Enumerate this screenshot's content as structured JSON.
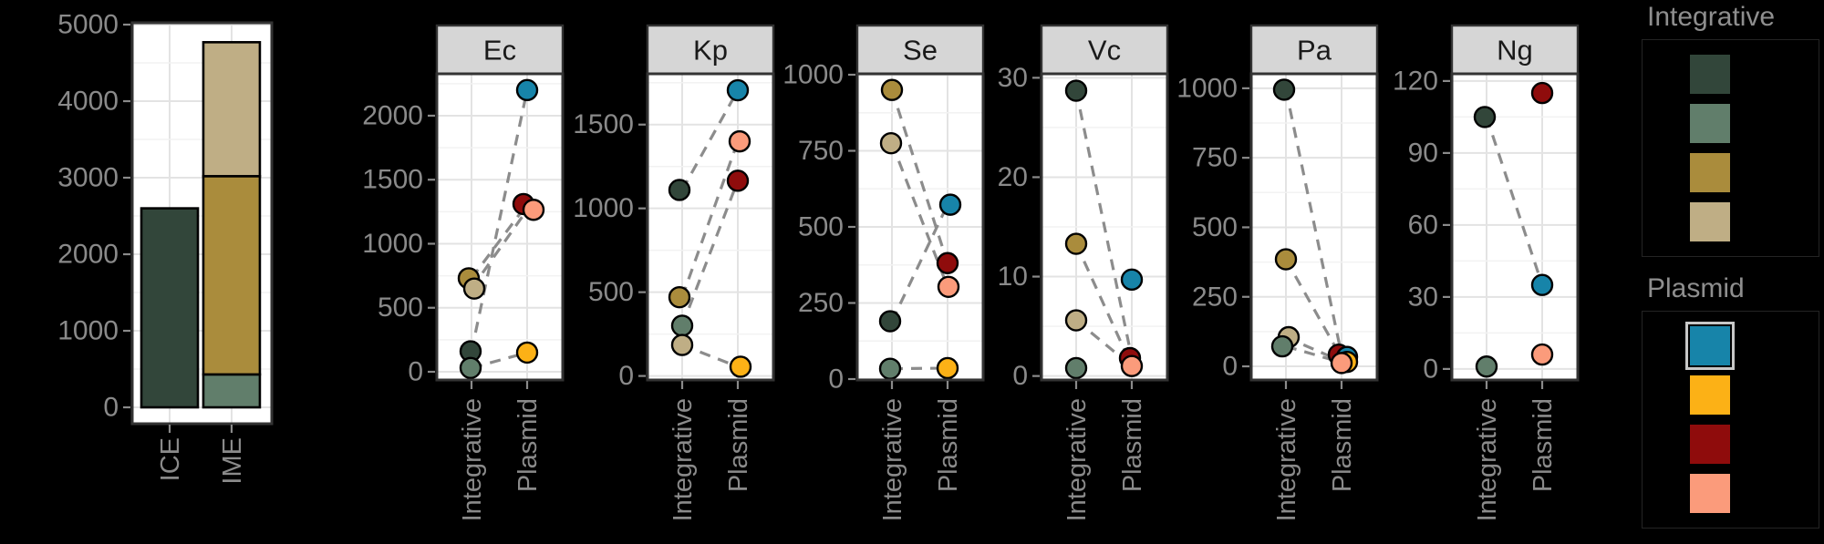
{
  "background": "#000000",
  "palette": {
    "dark_green": "#32463A",
    "sage": "#617E6B",
    "gold": "#AA8C3C",
    "tan": "#BFAE85",
    "blue": "#1784A9",
    "orange": "#FCB116",
    "red": "#8F0C0C",
    "salmon": "#FB9B7B"
  },
  "theme": {
    "panel_bg": "#FFFFFF",
    "panel_border": "#333333",
    "header_bg": "#D6D6D6",
    "header_text": "#1A1A1A",
    "grid_major": "#E3E3E3",
    "grid_minor": "#F2F2F2",
    "axis_text": "#8A8A8A",
    "dash_line": "#8C8C8C",
    "point_stroke": "#000000",
    "legend_title": "#8E8E8E",
    "legend_box_border": "#242424",
    "highlight_border": "#C8C8C8"
  },
  "chart_data": {
    "type": [
      "bar",
      "scatter"
    ],
    "x_categories": [
      "Integrative",
      "Plasmid"
    ],
    "bar_chart": {
      "type": "stacked-bar",
      "categories": [
        "ICE",
        "IME"
      ],
      "y_ticks": [
        0,
        1000,
        2000,
        3000,
        4000,
        5000
      ],
      "minor_step": 500,
      "domain": [
        -214,
        5024
      ],
      "bars": [
        {
          "category": "ICE",
          "segments": [
            {
              "color": "dark_green",
              "from": 0,
              "to": 2600
            }
          ]
        },
        {
          "category": "IME",
          "segments": [
            {
              "color": "sage",
              "from": 0,
              "to": 430
            },
            {
              "color": "gold",
              "from": 430,
              "to": 3020
            },
            {
              "color": "tan",
              "from": 3020,
              "to": 4770
            }
          ]
        }
      ]
    },
    "facets": [
      {
        "label": "Ec",
        "y_ticks": [
          0,
          500,
          1000,
          1500,
          2000
        ],
        "tick_step": 500,
        "domain": [
          -64,
          2327
        ],
        "points": [
          {
            "cat": "Integrative",
            "color": "gold",
            "value": 730,
            "dx": -3
          },
          {
            "cat": "Integrative",
            "color": "tan",
            "value": 650,
            "dx": 3
          },
          {
            "cat": "Integrative",
            "color": "dark_green",
            "value": 160,
            "dx": -1
          },
          {
            "cat": "Integrative",
            "color": "sage",
            "value": 30,
            "dx": -1
          },
          {
            "cat": "Plasmid",
            "color": "blue",
            "value": 2200,
            "dx": 0
          },
          {
            "cat": "Plasmid",
            "color": "red",
            "value": 1310,
            "dx": -4
          },
          {
            "cat": "Plasmid",
            "color": "salmon",
            "value": 1265,
            "dx": 7
          },
          {
            "cat": "Plasmid",
            "color": "orange",
            "value": 150,
            "dx": 0
          }
        ],
        "lines": [
          {
            "from_value": 160,
            "to_value": 2200
          },
          {
            "from_value": 730,
            "to_value": 1310
          },
          {
            "from_value": 650,
            "to_value": 1265
          },
          {
            "from_value": 30,
            "to_value": 150
          }
        ]
      },
      {
        "label": "Kp",
        "y_ticks": [
          0,
          500,
          1000,
          1500
        ],
        "tick_step": 500,
        "domain": [
          -24,
          1803
        ],
        "points": [
          {
            "cat": "Integrative",
            "color": "dark_green",
            "value": 1110,
            "dx": -3
          },
          {
            "cat": "Integrative",
            "color": "gold",
            "value": 470,
            "dx": -3
          },
          {
            "cat": "Integrative",
            "color": "sage",
            "value": 300,
            "dx": 0
          },
          {
            "cat": "Integrative",
            "color": "tan",
            "value": 185,
            "dx": 0
          },
          {
            "cat": "Plasmid",
            "color": "blue",
            "value": 1705,
            "dx": 0
          },
          {
            "cat": "Plasmid",
            "color": "salmon",
            "value": 1400,
            "dx": 2
          },
          {
            "cat": "Plasmid",
            "color": "red",
            "value": 1165,
            "dx": 0
          },
          {
            "cat": "Plasmid",
            "color": "orange",
            "value": 55,
            "dx": 3
          }
        ],
        "lines": [
          {
            "from_value": 1110,
            "to_value": 1705
          },
          {
            "from_value": 470,
            "to_value": 1400
          },
          {
            "from_value": 300,
            "to_value": 1165
          },
          {
            "from_value": 185,
            "to_value": 55
          }
        ]
      },
      {
        "label": "Se",
        "y_ticks": [
          0,
          250,
          500,
          750,
          1000
        ],
        "tick_step": 250,
        "domain": [
          -3,
          1003
        ],
        "points": [
          {
            "cat": "Integrative",
            "color": "gold",
            "value": 950,
            "dx": 0
          },
          {
            "cat": "Integrative",
            "color": "tan",
            "value": 775,
            "dx": -1
          },
          {
            "cat": "Integrative",
            "color": "dark_green",
            "value": 190,
            "dx": -2
          },
          {
            "cat": "Integrative",
            "color": "sage",
            "value": 34,
            "dx": -2
          },
          {
            "cat": "Plasmid",
            "color": "blue",
            "value": 573,
            "dx": 3
          },
          {
            "cat": "Plasmid",
            "color": "red",
            "value": 381,
            "dx": 0
          },
          {
            "cat": "Plasmid",
            "color": "salmon",
            "value": 303,
            "dx": 1
          },
          {
            "cat": "Plasmid",
            "color": "orange",
            "value": 36,
            "dx": 0
          }
        ],
        "lines": [
          {
            "from_value": 190,
            "to_value": 573
          },
          {
            "from_value": 950,
            "to_value": 381
          },
          {
            "from_value": 775,
            "to_value": 303
          },
          {
            "from_value": 34,
            "to_value": 36
          }
        ]
      },
      {
        "label": "Vc",
        "y_ticks": [
          0,
          10,
          20,
          30
        ],
        "tick_step": 10,
        "domain": [
          -0.4,
          30.4
        ],
        "points": [
          {
            "cat": "Integrative",
            "color": "dark_green",
            "value": 28.7,
            "dx": 0
          },
          {
            "cat": "Integrative",
            "color": "gold",
            "value": 13.3,
            "dx": 0
          },
          {
            "cat": "Integrative",
            "color": "tan",
            "value": 5.6,
            "dx": 0
          },
          {
            "cat": "Integrative",
            "color": "sage",
            "value": 0.8,
            "dx": 0
          },
          {
            "cat": "Plasmid",
            "color": "red",
            "value": 1.8,
            "dx": -2
          },
          {
            "cat": "Plasmid",
            "color": "blue",
            "value": 9.7,
            "dx": 0
          },
          {
            "cat": "Plasmid",
            "color": "salmon",
            "value": 1.0,
            "dx": 0
          }
        ],
        "lines": [
          {
            "from_value": 28.7,
            "to_value": 1.8
          },
          {
            "from_value": 13.3,
            "to_value": 1.0
          },
          {
            "from_value": 5.6,
            "to_value": 1.0
          }
        ]
      },
      {
        "label": "Pa",
        "y_ticks": [
          0,
          250,
          500,
          750,
          1000
        ],
        "tick_step": 250,
        "domain": [
          -49,
          1052
        ],
        "points": [
          {
            "cat": "Integrative",
            "color": "dark_green",
            "value": 995,
            "dx": -2
          },
          {
            "cat": "Integrative",
            "color": "gold",
            "value": 385,
            "dx": 0
          },
          {
            "cat": "Integrative",
            "color": "tan",
            "value": 105,
            "dx": 3
          },
          {
            "cat": "Integrative",
            "color": "sage",
            "value": 72,
            "dx": -4
          },
          {
            "cat": "Plasmid",
            "color": "red",
            "value": 42,
            "dx": -3
          },
          {
            "cat": "Plasmid",
            "color": "blue",
            "value": 34,
            "dx": 6
          },
          {
            "cat": "Plasmid",
            "color": "orange",
            "value": 16,
            "dx": 6
          },
          {
            "cat": "Plasmid",
            "color": "salmon",
            "value": 12,
            "dx": 0
          }
        ],
        "lines": [
          {
            "from_value": 995,
            "to_value": 42
          },
          {
            "from_value": 385,
            "to_value": 30
          },
          {
            "from_value": 105,
            "to_value": 18
          },
          {
            "from_value": 72,
            "to_value": 14
          }
        ]
      },
      {
        "label": "Ng",
        "y_ticks": [
          0,
          30,
          60,
          90,
          120
        ],
        "tick_step": 30,
        "domain": [
          -4.6,
          123
        ],
        "points": [
          {
            "cat": "Integrative",
            "color": "dark_green",
            "value": 105,
            "dx": -2
          },
          {
            "cat": "Integrative",
            "color": "sage",
            "value": 1,
            "dx": 0
          },
          {
            "cat": "Plasmid",
            "color": "red",
            "value": 115,
            "dx": 0
          },
          {
            "cat": "Plasmid",
            "color": "blue",
            "value": 35,
            "dx": 0
          },
          {
            "cat": "Plasmid",
            "color": "salmon",
            "value": 6,
            "dx": 0
          }
        ],
        "lines": [
          {
            "from_value": 105,
            "to_value": 35
          }
        ]
      }
    ],
    "legends": [
      {
        "title": "Integrative",
        "keys": [
          {
            "color": "dark_green",
            "highlighted": false
          },
          {
            "color": "sage",
            "highlighted": false
          },
          {
            "color": "gold",
            "highlighted": false
          },
          {
            "color": "tan",
            "highlighted": false
          }
        ]
      },
      {
        "title": "Plasmid",
        "keys": [
          {
            "color": "blue",
            "highlighted": true
          },
          {
            "color": "orange",
            "highlighted": false
          },
          {
            "color": "red",
            "highlighted": false
          },
          {
            "color": "salmon",
            "highlighted": false
          }
        ]
      }
    ]
  }
}
